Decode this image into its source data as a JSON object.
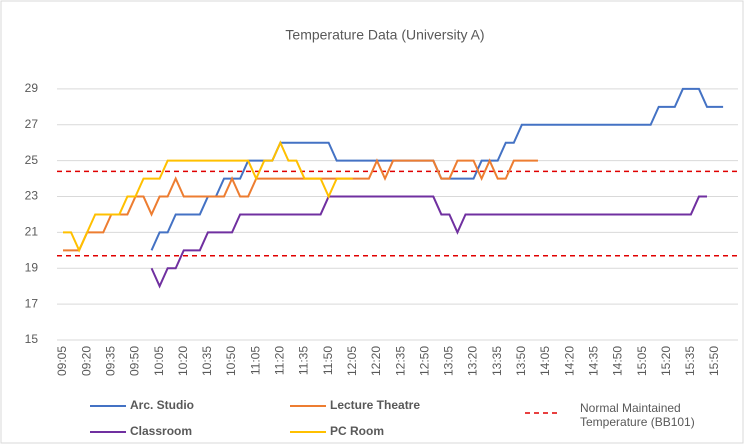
{
  "chart_data": {
    "type": "line",
    "title": "Temperature Data (University A)",
    "categories": [
      "09:05",
      null,
      null,
      "09:20",
      null,
      null,
      "09:35",
      null,
      null,
      "09:50",
      null,
      null,
      "10:05",
      null,
      null,
      "10:20",
      null,
      null,
      "10:35",
      null,
      null,
      "10:50",
      null,
      null,
      "11:05",
      null,
      null,
      "11:20",
      null,
      null,
      "11:35",
      null,
      null,
      "11:50",
      null,
      null,
      "12:05",
      null,
      null,
      "12:20",
      null,
      null,
      "12:35",
      null,
      null,
      "12:50",
      null,
      null,
      "13:05",
      null,
      null,
      "13:20",
      null,
      null,
      "13:35",
      null,
      null,
      "13:50",
      null,
      null,
      "14:05",
      null,
      null,
      "14:20",
      null,
      null,
      "14:35",
      null,
      null,
      "14:50",
      null,
      null,
      "15:05",
      null,
      null,
      "15:20",
      null,
      null,
      "15:35",
      null,
      null,
      "15:50",
      null
    ],
    "series": [
      {
        "name": "Arc. Studio",
        "color": "#4472c4",
        "values": [
          null,
          null,
          null,
          null,
          null,
          null,
          null,
          null,
          null,
          null,
          null,
          20,
          21,
          21,
          22,
          22,
          22,
          22,
          23,
          23,
          24,
          24,
          24,
          25,
          25,
          25,
          25,
          26,
          26,
          26,
          26,
          26,
          26,
          26,
          25,
          25,
          25,
          25,
          25,
          25,
          25,
          25,
          25,
          25,
          25,
          25,
          25,
          24,
          24,
          24,
          24,
          24,
          25,
          25,
          25,
          26,
          26,
          27,
          27,
          27,
          27,
          27,
          27,
          27,
          27,
          27,
          27,
          27,
          27,
          27,
          27,
          27,
          27,
          27,
          28,
          28,
          28,
          29,
          29,
          29,
          28,
          28,
          28
        ]
      },
      {
        "name": "Lecture Theatre",
        "color": "#ed7d31",
        "values": [
          20,
          20,
          20,
          21,
          21,
          21,
          22,
          22,
          22,
          23,
          23,
          22,
          23,
          23,
          24,
          23,
          23,
          23,
          23,
          23,
          23,
          24,
          23,
          23,
          24,
          24,
          24,
          24,
          24,
          24,
          24,
          24,
          24,
          24,
          24,
          24,
          24,
          24,
          24,
          25,
          24,
          25,
          25,
          25,
          25,
          25,
          25,
          24,
          24,
          25,
          25,
          25,
          24,
          25,
          24,
          24,
          25,
          25,
          25,
          25,
          null,
          null,
          null,
          null,
          null,
          null,
          null,
          null,
          null,
          null,
          null,
          null,
          null,
          null,
          null,
          null,
          null,
          null,
          null,
          null,
          null,
          null,
          null
        ]
      },
      {
        "name": "Classroom",
        "color": "#7030a0",
        "values": [
          null,
          null,
          null,
          null,
          null,
          null,
          null,
          null,
          null,
          null,
          null,
          19,
          18,
          19,
          19,
          20,
          20,
          20,
          21,
          21,
          21,
          21,
          22,
          22,
          22,
          22,
          22,
          22,
          22,
          22,
          22,
          22,
          22,
          23,
          23,
          23,
          23,
          23,
          23,
          23,
          23,
          23,
          23,
          23,
          23,
          23,
          23,
          22,
          22,
          21,
          22,
          22,
          22,
          22,
          22,
          22,
          22,
          22,
          22,
          22,
          22,
          22,
          22,
          22,
          22,
          22,
          22,
          22,
          22,
          22,
          22,
          22,
          22,
          22,
          22,
          22,
          22,
          22,
          22,
          23,
          23,
          null,
          null
        ]
      },
      {
        "name": "PC Room",
        "color": "#ffc000",
        "values": [
          21,
          21,
          20,
          21,
          22,
          22,
          22,
          22,
          23,
          23,
          24,
          24,
          24,
          25,
          25,
          25,
          25,
          25,
          25,
          25,
          25,
          25,
          25,
          25,
          24,
          25,
          25,
          26,
          25,
          25,
          24,
          24,
          24,
          23,
          24,
          24,
          24,
          null,
          null,
          null,
          null,
          null,
          null,
          null,
          null,
          null,
          null,
          null,
          null,
          null,
          null,
          null,
          null,
          null,
          null,
          null,
          null,
          null,
          null,
          null,
          null,
          null,
          null,
          null,
          null,
          null,
          null,
          null,
          null,
          null,
          null,
          null,
          null,
          null,
          null,
          null,
          null,
          null,
          null,
          null,
          null,
          null,
          null
        ]
      }
    ],
    "reference_lines": {
      "name": "Normal Maintained Temperature (BB101)",
      "color": "#e00000",
      "values": [
        24.4,
        19.7
      ]
    },
    "ylim": [
      15,
      30
    ],
    "yticks": [
      15,
      17,
      19,
      21,
      23,
      25,
      27,
      29
    ],
    "grid": true
  }
}
